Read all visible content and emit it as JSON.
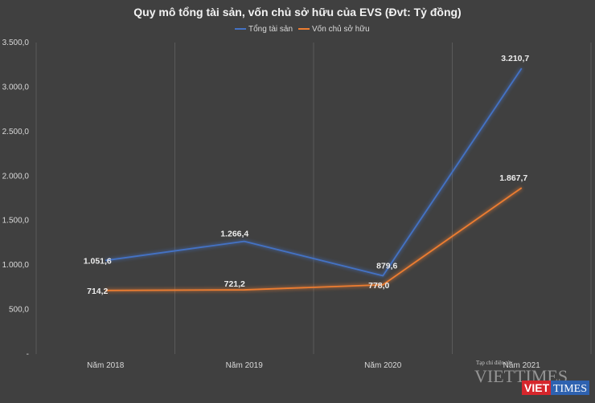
{
  "chart_data": {
    "type": "line",
    "title": "Quy mô tổng tài sản, vốn chủ sở hữu của EVS (Đvt: Tỷ đồng)",
    "categories": [
      "Năm 2018",
      "Năm 2019",
      "Năm 2020",
      "Năm 2021"
    ],
    "y_ticks": [
      "-",
      "500,0",
      "1.000,0",
      "1.500,0",
      "2.000,0",
      "2.500,0",
      "3.000,0",
      "3.500,0"
    ],
    "ylim": [
      0,
      3500
    ],
    "grid": "vertical",
    "legend_position": "top",
    "series": [
      {
        "name": "Tổng tài sản",
        "values": [
          1051.6,
          1266.4,
          879.6,
          3210.7
        ],
        "labels": [
          "1.051,6",
          "1.266,4",
          "879,6",
          "3.210,7"
        ],
        "color": "#4472c4"
      },
      {
        "name": "Vốn chủ sở hữu",
        "values": [
          714.2,
          721.2,
          778.0,
          1867.7
        ],
        "labels": [
          "714,2",
          "721,2",
          "778,0",
          "1.867,7"
        ],
        "color": "#ed7d31"
      }
    ]
  },
  "watermark": {
    "small": "Tạp chí điện tử",
    "big": "VIETTIMES",
    "red": "VIET",
    "blue": "TIMES",
    "red_color": "#d6262c",
    "blue_color": "#2e62b0"
  }
}
